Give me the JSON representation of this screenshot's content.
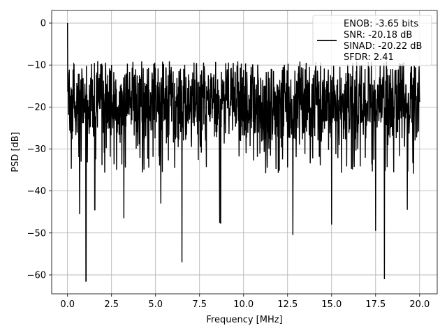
{
  "chart_data": {
    "type": "line",
    "xlabel": "Frequency [MHz]",
    "ylabel": "PSD [dB]",
    "xlim": [
      -0.9,
      21.0
    ],
    "ylim": [
      -64.5,
      3.0
    ],
    "x_ticks": [
      0.0,
      2.5,
      5.0,
      7.5,
      10.0,
      12.5,
      15.0,
      17.5,
      20.0
    ],
    "x_tick_labels": [
      "0.0",
      "2.5",
      "5.0",
      "7.5",
      "10.0",
      "12.5",
      "15.0",
      "17.5",
      "20.0"
    ],
    "y_ticks": [
      0,
      -10,
      -20,
      -30,
      -40,
      -50,
      -60
    ],
    "y_tick_labels": [
      "0",
      "−10",
      "−20",
      "−30",
      "−40",
      "−50",
      "−60"
    ],
    "grid": true,
    "legend_position": "top-right",
    "series": [
      {
        "name": "ENOB: -3.65 bits\nSNR: -20.18 dB\nSINAD: -20.22 dB\nSFDR: 2.41",
        "color": "#000000",
        "description": "noise-like PSD spanning 0 to 20 MHz, peak 0 dB at 0 MHz, dense band mostly between -10 and -30 dB",
        "x_range": [
          0.0,
          20.0
        ],
        "peak": {
          "x": 0.0,
          "y": 0.0
        },
        "envelope_top": -10,
        "envelope_bottom": -30,
        "notable_dips": [
          {
            "x": 0.68,
            "y": -45.5
          },
          {
            "x": 1.05,
            "y": -61.5
          },
          {
            "x": 1.55,
            "y": -44.5
          },
          {
            "x": 3.2,
            "y": -46.5
          },
          {
            "x": 5.3,
            "y": -43.0
          },
          {
            "x": 6.5,
            "y": -57.0
          },
          {
            "x": 8.65,
            "y": -47.5
          },
          {
            "x": 8.7,
            "y": -47.8
          },
          {
            "x": 12.8,
            "y": -50.5
          },
          {
            "x": 15.0,
            "y": -48.0
          },
          {
            "x": 17.5,
            "y": -49.5
          },
          {
            "x": 18.0,
            "y": -61.0
          },
          {
            "x": 19.3,
            "y": -44.5
          }
        ]
      }
    ],
    "legend_lines": [
      "ENOB: -3.65 bits",
      "SNR: -20.18 dB",
      "SINAD: -20.22 dB",
      "SFDR: 2.41"
    ]
  }
}
